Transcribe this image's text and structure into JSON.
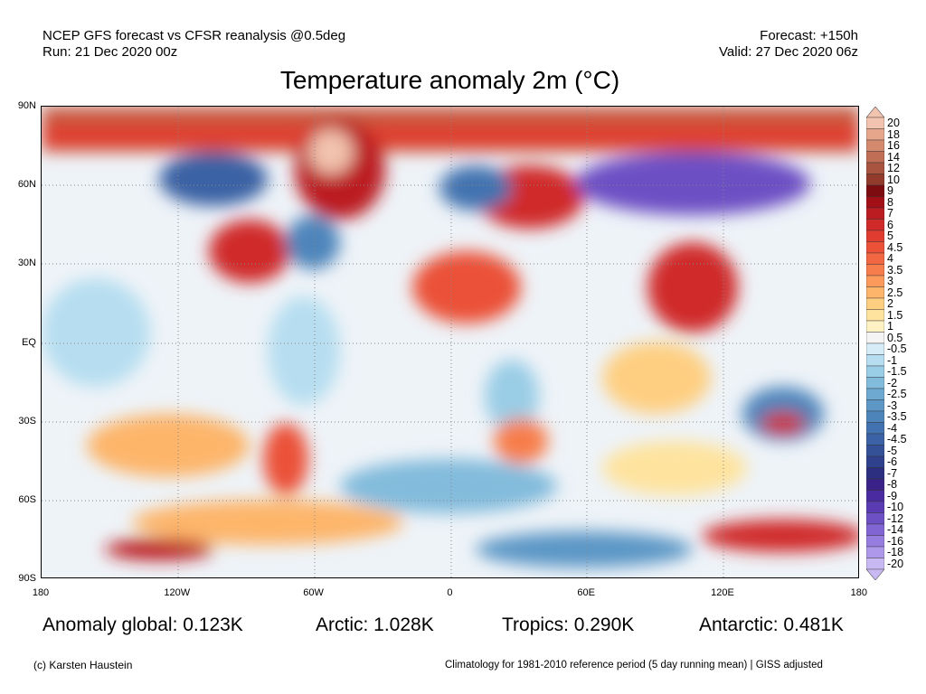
{
  "header": {
    "line1": "NCEP GFS forecast vs CFSR reanalysis @0.5deg",
    "line2": "Run: 21 Dec 2020 00z",
    "forecast": "Forecast: +150h",
    "valid": "Valid: 27 Dec 2020 06z",
    "title": "Temperature anomaly 2m (°C)"
  },
  "axes": {
    "lat": [
      "90N",
      "60N",
      "30N",
      "EQ",
      "30S",
      "60S",
      "90S"
    ],
    "lon": [
      "180",
      "120W",
      "60W",
      "0",
      "60E",
      "120E",
      "180"
    ]
  },
  "colorbar": {
    "labels": [
      "20",
      "18",
      "16",
      "14",
      "12",
      "10",
      "9",
      "8",
      "7",
      "6",
      "5",
      "4.5",
      "4",
      "3.5",
      "3",
      "2.5",
      "2",
      "1.5",
      "1",
      "0.5",
      "-0.5",
      "-1",
      "-1.5",
      "-2",
      "-2.5",
      "-3",
      "-3.5",
      "-4",
      "-4.5",
      "-5",
      "-6",
      "-7",
      "-8",
      "-9",
      "-10",
      "-12",
      "-14",
      "-16",
      "-18",
      "-20"
    ],
    "colors": [
      "#f2c3ae",
      "#e5a68c",
      "#d48a6f",
      "#c06e55",
      "#a85440",
      "#923a2c",
      "#7c0c10",
      "#a20f17",
      "#bb1c22",
      "#d02b29",
      "#e03c2f",
      "#eb5137",
      "#f26741",
      "#f77e4c",
      "#fb9a5a",
      "#fdb56b",
      "#fecf81",
      "#fee39e",
      "#fef2c4",
      "#f4f4f4",
      "#d6ecf6",
      "#b6def0",
      "#9acde6",
      "#82bbdc",
      "#6ea9d1",
      "#5c97c6",
      "#4d85bb",
      "#4273b0",
      "#3a62a4",
      "#345198",
      "#2f408c",
      "#2c2f80",
      "#3a2388",
      "#4a2ca0",
      "#5a3bb2",
      "#6d50c4",
      "#8165d3",
      "#977ddf",
      "#ae98ea",
      "#c8b9f3"
    ]
  },
  "stats": {
    "global": "Anomaly global: 0.123K",
    "arctic": "Arctic: 1.028K",
    "tropics": "Tropics: 0.290K",
    "antarctic": "Antarctic: 0.481K"
  },
  "footer": {
    "credit": "(c) Karsten Haustein",
    "climatology": "Climatology for 1981-2010 reference period (5 day running mean) | GISS adjusted"
  }
}
